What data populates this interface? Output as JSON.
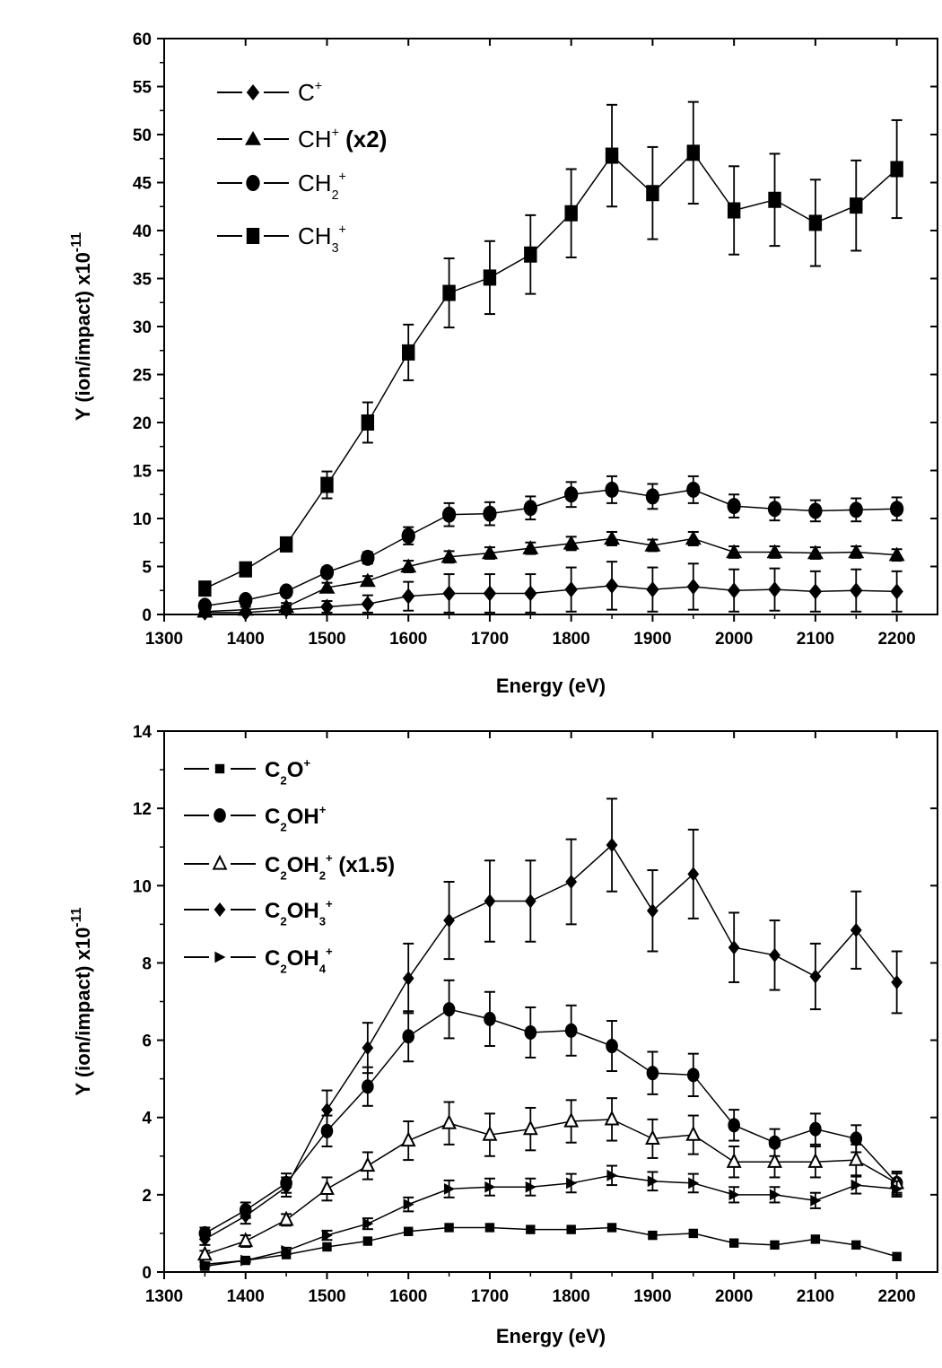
{
  "chart_data": [
    {
      "type": "line",
      "xlabel": "Energy (eV)",
      "ylabel": "Y (ion/impact) x10",
      "ylabel_exponent": "-11",
      "xlim": [
        1300,
        2250
      ],
      "ylim": [
        0,
        60
      ],
      "xticks": [
        1300,
        1400,
        1500,
        1600,
        1700,
        1800,
        1900,
        2000,
        2100,
        2200
      ],
      "yticks": [
        0,
        5,
        10,
        15,
        20,
        25,
        30,
        35,
        40,
        45,
        50,
        55,
        60
      ],
      "legend_position": "top-left",
      "x": [
        1350,
        1400,
        1450,
        1500,
        1550,
        1600,
        1650,
        1700,
        1750,
        1800,
        1850,
        1900,
        1950,
        2000,
        2050,
        2100,
        2150,
        2200
      ],
      "series": [
        {
          "name": "C+",
          "label": [
            {
              "t": "C"
            },
            {
              "sup": "+"
            }
          ],
          "marker": "diamond",
          "values": [
            0.2,
            0.2,
            0.5,
            0.8,
            1.1,
            1.9,
            2.2,
            2.2,
            2.2,
            2.6,
            3.0,
            2.6,
            2.9,
            2.5,
            2.6,
            2.4,
            2.5,
            2.4
          ],
          "error": [
            0.2,
            0.2,
            0.4,
            0.6,
            0.9,
            1.5,
            2.0,
            2.0,
            2.0,
            2.3,
            2.5,
            2.3,
            2.4,
            2.2,
            2.2,
            2.1,
            2.2,
            2.1
          ]
        },
        {
          "name": "CH+ (x2)",
          "label": [
            {
              "t": "CH"
            },
            {
              "sup": "+"
            },
            {
              "b": " (x2)"
            }
          ],
          "marker": "triangle",
          "values": [
            0.3,
            0.5,
            0.8,
            2.8,
            3.5,
            5.0,
            6.0,
            6.4,
            6.9,
            7.4,
            7.9,
            7.2,
            7.9,
            6.5,
            6.5,
            6.4,
            6.5,
            6.2
          ],
          "error": [
            0.2,
            0.3,
            0.4,
            0.5,
            0.5,
            0.6,
            0.6,
            0.6,
            0.6,
            0.7,
            0.7,
            0.6,
            0.7,
            0.6,
            0.6,
            0.6,
            0.6,
            0.6
          ]
        },
        {
          "name": "CH2+",
          "label": [
            {
              "t": "CH"
            },
            {
              "sub": "2"
            },
            {
              "sup": "+"
            }
          ],
          "marker": "circle",
          "values": [
            0.9,
            1.5,
            2.4,
            4.4,
            5.9,
            8.2,
            10.4,
            10.5,
            11.1,
            12.5,
            13.0,
            12.3,
            13.0,
            11.3,
            11.0,
            10.8,
            10.9,
            11.0
          ],
          "error": [
            0.3,
            0.3,
            0.4,
            0.5,
            0.6,
            0.9,
            1.2,
            1.2,
            1.2,
            1.3,
            1.4,
            1.3,
            1.4,
            1.2,
            1.2,
            1.1,
            1.2,
            1.2
          ]
        },
        {
          "name": "CH3+",
          "label": [
            {
              "t": "CH"
            },
            {
              "sub": "3"
            },
            {
              "sup": "+"
            }
          ],
          "marker": "square",
          "values": [
            2.7,
            4.7,
            7.3,
            13.5,
            20.0,
            27.3,
            33.5,
            35.1,
            37.5,
            41.8,
            47.8,
            43.9,
            48.1,
            42.1,
            43.2,
            40.8,
            42.6,
            46.4
          ],
          "error": [
            0.3,
            0.5,
            0.7,
            1.4,
            2.1,
            2.9,
            3.6,
            3.8,
            4.1,
            4.6,
            5.3,
            4.8,
            5.3,
            4.6,
            4.8,
            4.5,
            4.7,
            5.1
          ]
        }
      ]
    },
    {
      "type": "line",
      "xlabel": "Energy (eV)",
      "ylabel": "Y (ion/impact) x10",
      "ylabel_exponent": "-11",
      "xlim": [
        1300,
        2250
      ],
      "ylim": [
        0,
        14
      ],
      "xticks": [
        1300,
        1400,
        1500,
        1600,
        1700,
        1800,
        1900,
        2000,
        2100,
        2200
      ],
      "yticks": [
        0,
        2,
        4,
        6,
        8,
        10,
        12,
        14
      ],
      "legend_position": "top-left",
      "x": [
        1350,
        1400,
        1450,
        1500,
        1550,
        1600,
        1650,
        1700,
        1750,
        1800,
        1850,
        1900,
        1950,
        2000,
        2050,
        2100,
        2150,
        2200
      ],
      "series": [
        {
          "name": "C2O+",
          "label": [
            {
              "t": "C"
            },
            {
              "sub": "2"
            },
            {
              "t": "O"
            },
            {
              "sup": "+"
            }
          ],
          "marker": "small-square",
          "values": [
            0.15,
            0.3,
            0.45,
            0.65,
            0.8,
            1.05,
            1.15,
            1.15,
            1.1,
            1.1,
            1.15,
            0.95,
            1.0,
            0.75,
            0.7,
            0.85,
            0.7,
            0.4
          ],
          "error": [
            0,
            0,
            0,
            0,
            0,
            0,
            0,
            0,
            0,
            0,
            0,
            0,
            0,
            0,
            0,
            0,
            0,
            0
          ]
        },
        {
          "name": "C2OH+",
          "label": [
            {
              "t": "C"
            },
            {
              "sub": "2"
            },
            {
              "t": "OH"
            },
            {
              "sup": "+"
            }
          ],
          "marker": "circle",
          "values": [
            1.0,
            1.6,
            2.3,
            3.65,
            4.8,
            6.1,
            6.8,
            6.55,
            6.2,
            6.25,
            5.85,
            5.15,
            5.1,
            3.8,
            3.35,
            3.7,
            3.45,
            2.3
          ],
          "error": [
            0.15,
            0.2,
            0.25,
            0.4,
            0.5,
            0.65,
            0.75,
            0.7,
            0.65,
            0.65,
            0.65,
            0.55,
            0.55,
            0.4,
            0.35,
            0.4,
            0.35,
            0.25
          ]
        },
        {
          "name": "C2OH2+ (x1.5)",
          "label": [
            {
              "t": "C"
            },
            {
              "sub": "2"
            },
            {
              "t": "OH"
            },
            {
              "sub": "2"
            },
            {
              "sup": "+"
            },
            {
              "b": " (x1.5)"
            }
          ],
          "marker": "open-triangle",
          "values": [
            0.45,
            0.8,
            1.35,
            2.15,
            2.75,
            3.4,
            3.85,
            3.55,
            3.7,
            3.9,
            3.95,
            3.45,
            3.55,
            2.85,
            2.85,
            2.85,
            2.9,
            2.3
          ],
          "error": [
            0.1,
            0.15,
            0.15,
            0.3,
            0.35,
            0.5,
            0.55,
            0.55,
            0.55,
            0.55,
            0.55,
            0.5,
            0.5,
            0.4,
            0.4,
            0.4,
            0.4,
            0.3
          ]
        },
        {
          "name": "C2OH3+",
          "label": [
            {
              "t": "C"
            },
            {
              "sub": "2"
            },
            {
              "t": "OH"
            },
            {
              "sub": "3"
            },
            {
              "sup": "+"
            }
          ],
          "marker": "diamond",
          "values": [
            0.85,
            1.45,
            2.2,
            4.2,
            5.8,
            7.6,
            9.1,
            9.6,
            9.6,
            10.1,
            11.05,
            9.35,
            10.3,
            8.4,
            8.2,
            7.65,
            8.85,
            7.5
          ],
          "error": [
            0.15,
            0.2,
            0.25,
            0.5,
            0.65,
            0.9,
            1.0,
            1.05,
            1.05,
            1.1,
            1.2,
            1.05,
            1.15,
            0.9,
            0.9,
            0.85,
            1.0,
            0.8
          ]
        },
        {
          "name": "C2OH4+",
          "label": [
            {
              "t": "C"
            },
            {
              "sub": "2"
            },
            {
              "t": "OH"
            },
            {
              "sub": "4"
            },
            {
              "sup": "+"
            }
          ],
          "marker": "right-triangle",
          "values": [
            0.2,
            0.3,
            0.55,
            0.95,
            1.25,
            1.75,
            2.15,
            2.2,
            2.2,
            2.3,
            2.5,
            2.35,
            2.3,
            2.0,
            2.0,
            1.85,
            2.25,
            2.15
          ],
          "error": [
            0.05,
            0.05,
            0.08,
            0.12,
            0.14,
            0.18,
            0.22,
            0.22,
            0.22,
            0.24,
            0.25,
            0.24,
            0.24,
            0.2,
            0.2,
            0.2,
            0.22,
            0.2
          ]
        }
      ]
    }
  ]
}
